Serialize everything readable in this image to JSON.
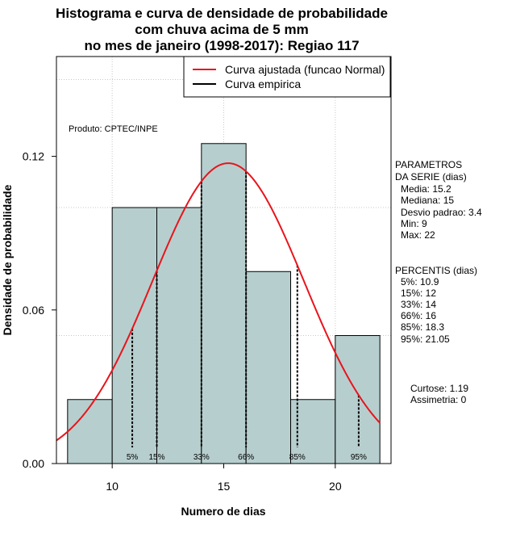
{
  "chart_data": {
    "type": "bar",
    "title_lines": [
      "Histograma e curva de densidade de probabilidade",
      "com chuva acima de 5 mm",
      "no mes de janeiro (1998-2017): Regiao 117"
    ],
    "xlabel": "Numero de dias",
    "ylabel": "Densidade de probabilidade",
    "xlim": [
      7.5,
      22.5
    ],
    "ylim": [
      0,
      0.159
    ],
    "x_ticks": [
      10,
      15,
      20
    ],
    "y_ticks": [
      0.0,
      0.06,
      0.12
    ],
    "y_tick_labels": [
      "0.00",
      "0.06",
      "0.12"
    ],
    "grid": true,
    "bins": [
      {
        "start": 8,
        "end": 10,
        "density": 0.025
      },
      {
        "start": 10,
        "end": 12,
        "density": 0.1
      },
      {
        "start": 12,
        "end": 14,
        "density": 0.1
      },
      {
        "start": 14,
        "end": 16,
        "density": 0.125
      },
      {
        "start": 16,
        "end": 18,
        "density": 0.075
      },
      {
        "start": 18,
        "end": 20,
        "density": 0.025
      },
      {
        "start": 20,
        "end": 22,
        "density": 0.05
      }
    ],
    "normal_curve": {
      "name": "Curva ajustada (funcao Normal)",
      "color": "#e8141c",
      "mean": 15.2,
      "sd": 3.4
    },
    "empirical_curve": {
      "name": "Curva empirica",
      "color": "#000000"
    },
    "bar_color": "#b7cece",
    "percentile_markers": [
      {
        "label": "5%",
        "x": 10.9
      },
      {
        "label": "15%",
        "x": 12
      },
      {
        "label": "33%",
        "x": 14
      },
      {
        "label": "66%",
        "x": 16
      },
      {
        "label": "85%",
        "x": 18.3
      },
      {
        "label": "95%",
        "x": 21.05
      }
    ],
    "legend_position": "top-right",
    "annotation": "Produto: CPTEC/INPE"
  },
  "side_panel": {
    "params_header": [
      "PARAMETROS",
      "DA SERIE (dias)"
    ],
    "params": [
      "Media: 15.2",
      "Mediana: 15",
      "Desvio padrao: 3.4",
      "Min: 9",
      "Max: 22"
    ],
    "pct_header": "PERCENTIS (dias)",
    "percentis": [
      "5%: 10.9",
      "15%: 12",
      "33%: 14",
      "66%: 16",
      "85%: 18.3",
      "95%: 21.05"
    ],
    "curtose": "Curtose: 1.19",
    "assimetria": "Assimetria: 0"
  }
}
